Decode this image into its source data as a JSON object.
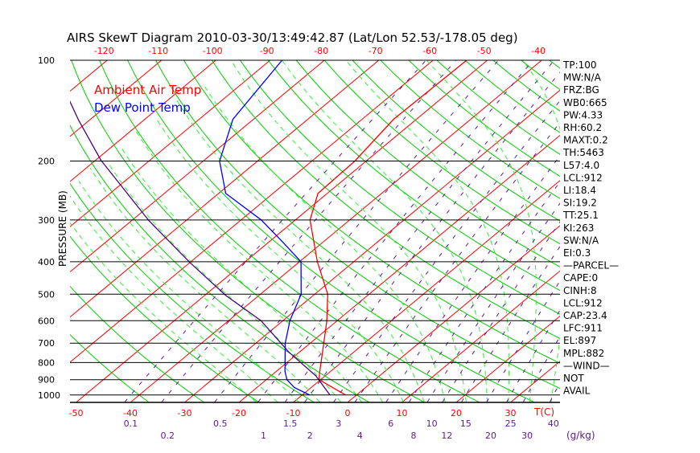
{
  "chart_data": {
    "type": "line",
    "title": "AIRS SkewT Diagram 2010-03-30/13:49:42.87 (Lat/Lon 52.53/-178.05 deg)",
    "ylabel": "PRESSURE (MB)",
    "xlabel": "T(C)",
    "mixing_ratio_label": "(g/kg)",
    "pressure_ticks": [
      100,
      200,
      300,
      400,
      500,
      600,
      700,
      800,
      900,
      1000
    ],
    "bottom_temp_ticks": [
      -50,
      -40,
      -30,
      -20,
      -10,
      0,
      10,
      20,
      30
    ],
    "top_temp_ticks": [
      -120,
      -110,
      -100,
      -90,
      -80,
      -70,
      -60,
      -50,
      -40
    ],
    "mixing_ratio_ticks": [
      "0.1",
      "0.2",
      "0.5",
      "1",
      "1.5",
      "2",
      "3",
      "4",
      "6",
      "8",
      "10",
      "12",
      "15",
      "20",
      "25",
      "30",
      "40"
    ],
    "legend": [
      "Ambient Air Temp",
      "Dew Point Temp"
    ],
    "series": [
      {
        "name": "Ambient Air Temp",
        "color": "#ff0000",
        "p": [
          1000,
          900,
          850,
          700,
          600,
          500,
          400,
          300,
          250,
          200,
          150,
          100
        ],
        "t": [
          -2,
          -10.3,
          -12,
          -17.5,
          -21.9,
          -27.6,
          -36.7,
          -47.3,
          -51.7,
          -52.1,
          -54.2,
          -53.8
        ]
      },
      {
        "name": "Dew Point Temp",
        "color": "#0000ff",
        "p": [
          1000,
          950,
          900,
          850,
          700,
          600,
          500,
          400,
          350,
          300,
          250,
          200,
          150,
          100
        ],
        "t": [
          -8.6,
          -13.1,
          -16.2,
          -18.4,
          -24.6,
          -28.7,
          -32.5,
          -39.7,
          -47.3,
          -56.3,
          -68.7,
          -77,
          -83.8,
          -87.8
        ]
      },
      {
        "name": "Parcel",
        "color": "#4b0082",
        "p": [
          1000,
          877,
          744,
          600,
          505,
          402,
          302,
          199,
          151,
          132
        ],
        "t": [
          -4.9,
          -11.7,
          -22,
          -34,
          -46,
          -60,
          -76.7,
          -99,
          -112,
          -118
        ]
      }
    ]
  },
  "indices": [
    "TP:100",
    "MW:N/A",
    "FRZ:BG",
    "WB0:665",
    "PW:4.33",
    "RH:60.2",
    "MAXT:0.2",
    "TH:5463",
    "L57:4.0",
    "LCL:912",
    "LI:18.4",
    "SI:19.2",
    "TT:25.1",
    "KI:263",
    "SW:N/A",
    "EI:0.3",
    "—PARCEL—",
    "CAPE:0",
    "CINH:8",
    "LCL:912",
    "CAP:23.4",
    "LFC:911",
    "EL:897",
    "MPL:882",
    "—WIND—",
    "NOT",
    "AVAIL"
  ],
  "colors": {
    "temp": "#ff0000",
    "dew": "#0000ff",
    "dry": "#00cc00",
    "moist": "#33ee33",
    "mix": "#5a1a9a",
    "parcel": "#4b0082"
  }
}
